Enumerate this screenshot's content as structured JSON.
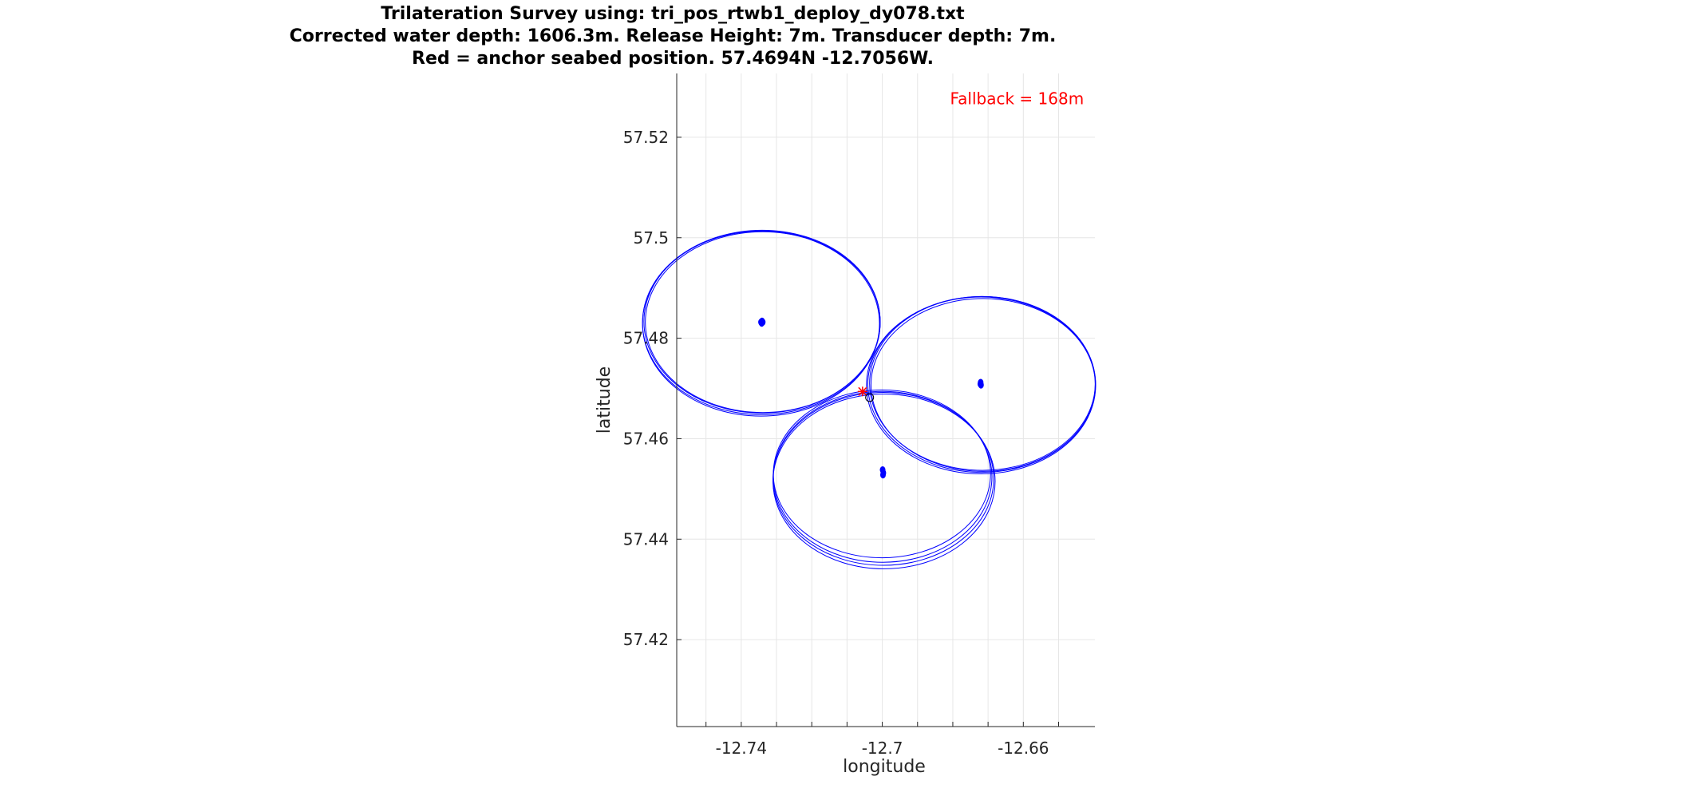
{
  "chart_data": {
    "type": "scatter",
    "title": [
      "Trilateration Survey using: tri_pos_rtwb1_deploy_dy078.txt",
      "Corrected water depth: 1606.3m. Release Height: 7m. Transducer depth: 7m.",
      "Red = anchor seabed position. 57.4694N -12.7056W."
    ],
    "xlabel": "longitude",
    "ylabel": "latitude",
    "xlim": [
      -12.7583,
      -12.6397
    ],
    "ylim": [
      57.4027,
      57.5327
    ],
    "xticks": [
      -12.75,
      -12.74,
      -12.73,
      -12.72,
      -12.71,
      -12.7,
      -12.69,
      -12.68,
      -12.67,
      -12.66,
      -12.65
    ],
    "xtick_labels": [
      {
        "value": -12.74,
        "label": "-12.74"
      },
      {
        "value": -12.7,
        "label": "-12.7"
      },
      {
        "value": -12.66,
        "label": "-12.66"
      }
    ],
    "yticks": [
      {
        "value": 57.42,
        "label": "57.42"
      },
      {
        "value": 57.44,
        "label": "57.44"
      },
      {
        "value": 57.46,
        "label": "57.46"
      },
      {
        "value": 57.48,
        "label": "57.48"
      },
      {
        "value": 57.5,
        "label": "57.5"
      },
      {
        "value": 57.52,
        "label": "57.52"
      }
    ],
    "grid": true,
    "annotation": {
      "text": "Fallback =   168m",
      "color": "#ff0000",
      "x": -12.6618,
      "y": 57.5266
    },
    "circle_color": "#0000ff",
    "circle_groups": [
      {
        "center_points": [
          [
            -12.7344,
            57.4832
          ],
          [
            -12.7341,
            57.4834
          ],
          [
            -12.7339,
            57.4832
          ],
          [
            -12.7342,
            57.483
          ]
        ],
        "circles": [
          {
            "cx": -12.7343,
            "cy": 57.4831,
            "rx": 0.0337,
            "ry": 0.0183
          },
          {
            "cx": -12.7341,
            "cy": 57.4833,
            "rx": 0.0335,
            "ry": 0.0182
          },
          {
            "cx": -12.7339,
            "cy": 57.4832,
            "rx": 0.0333,
            "ry": 0.018
          },
          {
            "cx": -12.7344,
            "cy": 57.4829,
            "rx": 0.0336,
            "ry": 0.0184
          }
        ]
      },
      {
        "center_points": [
          [
            -12.6721,
            57.4712
          ],
          [
            -12.672,
            57.4707
          ],
          [
            -12.6722,
            57.4709
          ]
        ],
        "circles": [
          {
            "cx": -12.6718,
            "cy": 57.4708,
            "rx": 0.0323,
            "ry": 0.0175
          },
          {
            "cx": -12.6716,
            "cy": 57.471,
            "rx": 0.032,
            "ry": 0.0173
          },
          {
            "cx": -12.672,
            "cy": 57.4706,
            "rx": 0.0325,
            "ry": 0.0176
          },
          {
            "cx": -12.6714,
            "cy": 57.4707,
            "rx": 0.0318,
            "ry": 0.0172
          }
        ]
      },
      {
        "center_points": [
          [
            -12.6999,
            57.4538
          ],
          [
            -12.6997,
            57.4532
          ],
          [
            -12.6998,
            57.4528
          ]
        ],
        "circles": [
          {
            "cx": -12.7001,
            "cy": 57.453,
            "rx": 0.0308,
            "ry": 0.0167
          },
          {
            "cx": -12.6999,
            "cy": 57.4524,
            "rx": 0.031,
            "ry": 0.017
          },
          {
            "cx": -12.6997,
            "cy": 57.452,
            "rx": 0.0313,
            "ry": 0.0172
          },
          {
            "cx": -12.6995,
            "cy": 57.4515,
            "rx": 0.0315,
            "ry": 0.0174
          }
        ]
      }
    ],
    "anchor_position": {
      "x": -12.7056,
      "y": 57.4694,
      "color": "#ff0000"
    },
    "fallback_marker": {
      "x": -12.7036,
      "y": 57.4682,
      "color": "#000000"
    }
  }
}
